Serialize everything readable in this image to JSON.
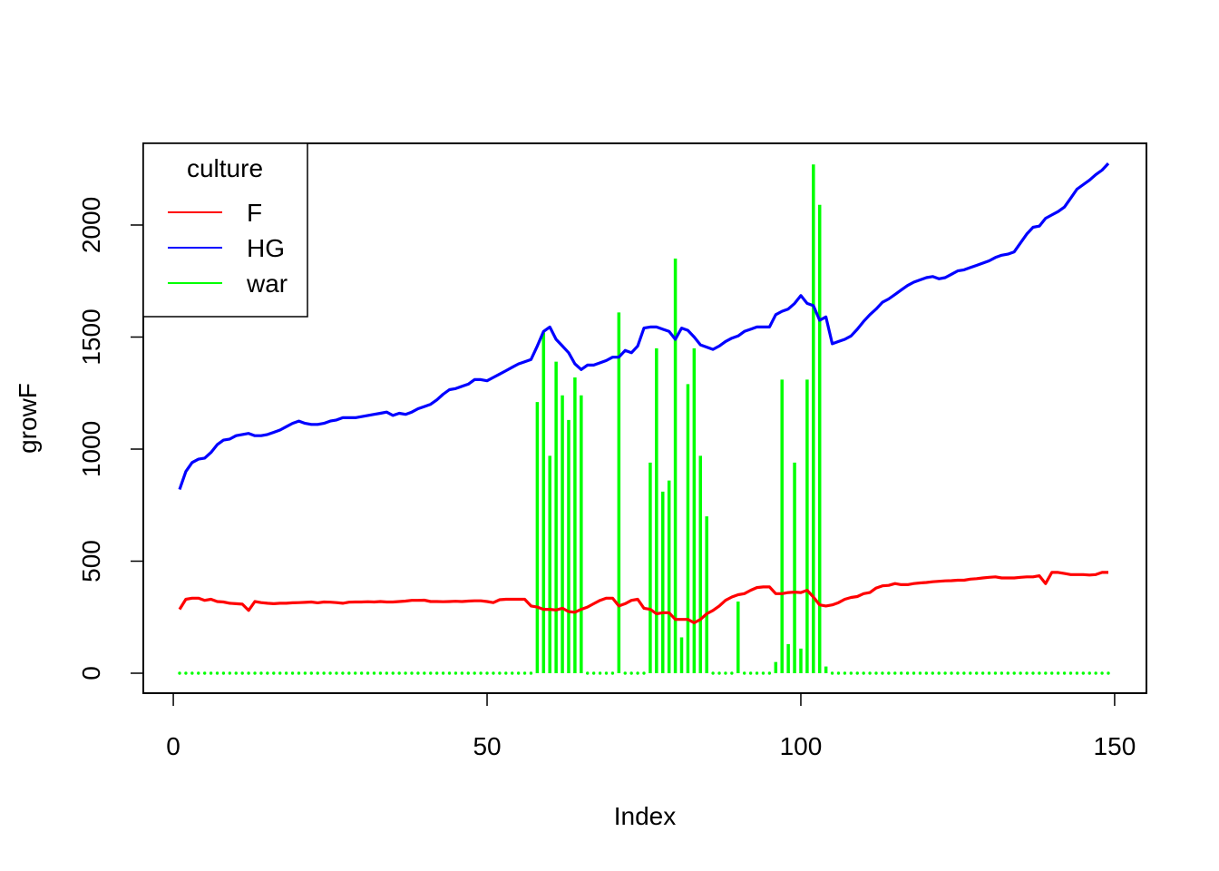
{
  "chart_data": {
    "type": "line",
    "xlabel": "Index",
    "ylabel": "growF",
    "xlim": [
      1,
      149
    ],
    "ylim": [
      0,
      2280
    ],
    "x_ticks": [
      0,
      50,
      100,
      150
    ],
    "y_ticks": [
      0,
      500,
      1000,
      1500,
      2000
    ],
    "grid": false,
    "legend": {
      "title": "culture",
      "placement": "top-left",
      "entries": [
        {
          "label": "F",
          "color": "#ff0000"
        },
        {
          "label": "HG",
          "color": "#0000ff"
        },
        {
          "label": "war",
          "color": "#00ff00"
        }
      ]
    },
    "series": [
      {
        "name": "F",
        "color": "#ff0000",
        "style": "line",
        "x": [
          1,
          2,
          3,
          4,
          5,
          6,
          7,
          8,
          9,
          10,
          11,
          12,
          13,
          14,
          15,
          16,
          17,
          18,
          19,
          20,
          21,
          22,
          23,
          24,
          25,
          26,
          27,
          28,
          29,
          30,
          31,
          32,
          33,
          34,
          35,
          36,
          37,
          38,
          39,
          40,
          41,
          42,
          43,
          44,
          45,
          46,
          47,
          48,
          49,
          50,
          51,
          52,
          53,
          54,
          55,
          56,
          57,
          58,
          59,
          60,
          61,
          62,
          63,
          64,
          65,
          66,
          67,
          68,
          69,
          70,
          71,
          72,
          73,
          74,
          75,
          76,
          77,
          78,
          79,
          80,
          81,
          82,
          83,
          84,
          85,
          86,
          87,
          88,
          89,
          90,
          91,
          92,
          93,
          94,
          95,
          96,
          97,
          98,
          99,
          100,
          101,
          102,
          103,
          104,
          105,
          106,
          107,
          108,
          109,
          110,
          111,
          112,
          113,
          114,
          115,
          116,
          117,
          118,
          119,
          120,
          121,
          122,
          123,
          124,
          125,
          126,
          127,
          128,
          129,
          130,
          131,
          132,
          133,
          134,
          135,
          136,
          137,
          138,
          139,
          140,
          141,
          142,
          143,
          144,
          145,
          146,
          147,
          148,
          149
        ],
        "values": [
          285,
          330,
          335,
          335,
          325,
          330,
          320,
          318,
          312,
          310,
          308,
          280,
          320,
          315,
          312,
          310,
          312,
          312,
          314,
          315,
          316,
          318,
          314,
          318,
          317,
          315,
          312,
          317,
          318,
          318,
          319,
          318,
          320,
          318,
          318,
          320,
          322,
          325,
          325,
          326,
          320,
          320,
          319,
          320,
          321,
          320,
          322,
          323,
          323,
          320,
          315,
          328,
          330,
          330,
          330,
          330,
          300,
          295,
          285,
          285,
          282,
          290,
          275,
          272,
          285,
          295,
          310,
          325,
          335,
          335,
          300,
          310,
          325,
          330,
          290,
          285,
          265,
          270,
          270,
          240,
          240,
          240,
          225,
          240,
          265,
          280,
          300,
          325,
          340,
          350,
          355,
          370,
          382,
          385,
          385,
          355,
          355,
          360,
          362,
          360,
          370,
          340,
          305,
          300,
          305,
          315,
          330,
          338,
          342,
          355,
          360,
          380,
          390,
          392,
          400,
          395,
          395,
          400,
          403,
          405,
          408,
          410,
          412,
          413,
          415,
          415,
          420,
          422,
          425,
          428,
          430,
          425,
          425,
          425,
          428,
          430,
          430,
          435,
          400,
          450,
          450,
          445,
          440,
          440,
          440,
          438,
          440,
          450,
          450
        ]
      },
      {
        "name": "HG",
        "color": "#0000ff",
        "style": "line",
        "x": [
          1,
          2,
          3,
          4,
          5,
          6,
          7,
          8,
          9,
          10,
          11,
          12,
          13,
          14,
          15,
          16,
          17,
          18,
          19,
          20,
          21,
          22,
          23,
          24,
          25,
          26,
          27,
          28,
          29,
          30,
          31,
          32,
          33,
          34,
          35,
          36,
          37,
          38,
          39,
          40,
          41,
          42,
          43,
          44,
          45,
          46,
          47,
          48,
          49,
          50,
          51,
          52,
          53,
          54,
          55,
          56,
          57,
          58,
          59,
          60,
          61,
          62,
          63,
          64,
          65,
          66,
          67,
          68,
          69,
          70,
          71,
          72,
          73,
          74,
          75,
          76,
          77,
          78,
          79,
          80,
          81,
          82,
          83,
          84,
          85,
          86,
          87,
          88,
          89,
          90,
          91,
          92,
          93,
          94,
          95,
          96,
          97,
          98,
          99,
          100,
          101,
          102,
          103,
          104,
          105,
          106,
          107,
          108,
          109,
          110,
          111,
          112,
          113,
          114,
          115,
          116,
          117,
          118,
          119,
          120,
          121,
          122,
          123,
          124,
          125,
          126,
          127,
          128,
          129,
          130,
          131,
          132,
          133,
          134,
          135,
          136,
          137,
          138,
          139,
          140,
          141,
          142,
          143,
          144,
          145,
          146,
          147,
          148,
          149
        ],
        "values": [
          820,
          900,
          940,
          955,
          960,
          985,
          1020,
          1040,
          1045,
          1060,
          1065,
          1070,
          1060,
          1060,
          1065,
          1075,
          1085,
          1100,
          1115,
          1125,
          1115,
          1110,
          1110,
          1115,
          1125,
          1130,
          1140,
          1140,
          1140,
          1145,
          1150,
          1155,
          1160,
          1165,
          1150,
          1160,
          1155,
          1165,
          1180,
          1190,
          1200,
          1220,
          1245,
          1265,
          1270,
          1280,
          1290,
          1310,
          1310,
          1305,
          1320,
          1335,
          1350,
          1365,
          1380,
          1390,
          1400,
          1460,
          1525,
          1545,
          1490,
          1460,
          1430,
          1380,
          1355,
          1375,
          1375,
          1385,
          1395,
          1410,
          1410,
          1440,
          1430,
          1460,
          1540,
          1545,
          1545,
          1535,
          1525,
          1490,
          1540,
          1530,
          1500,
          1465,
          1455,
          1445,
          1460,
          1480,
          1495,
          1505,
          1525,
          1535,
          1545,
          1545,
          1545,
          1600,
          1615,
          1625,
          1650,
          1685,
          1650,
          1640,
          1575,
          1590,
          1470,
          1480,
          1490,
          1505,
          1535,
          1570,
          1600,
          1625,
          1655,
          1670,
          1690,
          1710,
          1730,
          1745,
          1755,
          1765,
          1770,
          1760,
          1765,
          1780,
          1795,
          1800,
          1810,
          1820,
          1830,
          1840,
          1855,
          1865,
          1870,
          1880,
          1920,
          1960,
          1990,
          1995,
          2030,
          2045,
          2060,
          2080,
          2120,
          2160,
          2180,
          2200,
          2225,
          2245,
          2275
        ]
      },
      {
        "name": "war",
        "color": "#00ff00",
        "style": "bars",
        "x": [
          1,
          2,
          3,
          4,
          5,
          6,
          7,
          8,
          9,
          10,
          11,
          12,
          13,
          14,
          15,
          16,
          17,
          18,
          19,
          20,
          21,
          22,
          23,
          24,
          25,
          26,
          27,
          28,
          29,
          30,
          31,
          32,
          33,
          34,
          35,
          36,
          37,
          38,
          39,
          40,
          41,
          42,
          43,
          44,
          45,
          46,
          47,
          48,
          49,
          50,
          51,
          52,
          53,
          54,
          55,
          56,
          57,
          58,
          59,
          60,
          61,
          62,
          63,
          64,
          65,
          66,
          67,
          68,
          69,
          70,
          71,
          72,
          73,
          74,
          75,
          76,
          77,
          78,
          79,
          80,
          81,
          82,
          83,
          84,
          85,
          86,
          87,
          88,
          89,
          90,
          91,
          92,
          93,
          94,
          95,
          96,
          97,
          98,
          99,
          100,
          101,
          102,
          103,
          104,
          105,
          106,
          107,
          108,
          109,
          110,
          111,
          112,
          113,
          114,
          115,
          116,
          117,
          118,
          119,
          120,
          121,
          122,
          123,
          124,
          125,
          126,
          127,
          128,
          129,
          130,
          131,
          132,
          133,
          134,
          135,
          136,
          137,
          138,
          139,
          140,
          141,
          142,
          143,
          144,
          145,
          146,
          147,
          148,
          149
        ],
        "values": [
          0,
          0,
          0,
          0,
          0,
          0,
          0,
          0,
          0,
          0,
          0,
          0,
          0,
          0,
          0,
          0,
          0,
          0,
          0,
          0,
          0,
          0,
          0,
          0,
          0,
          0,
          0,
          0,
          0,
          0,
          0,
          0,
          0,
          0,
          0,
          0,
          0,
          0,
          0,
          0,
          0,
          0,
          0,
          0,
          0,
          0,
          0,
          0,
          0,
          0,
          0,
          0,
          0,
          0,
          0,
          0,
          0,
          1210,
          1520,
          970,
          1390,
          1240,
          1130,
          1320,
          1240,
          0,
          0,
          0,
          0,
          0,
          1610,
          0,
          0,
          0,
          0,
          940,
          1450,
          810,
          860,
          1850,
          160,
          1290,
          1450,
          970,
          700,
          0,
          0,
          0,
          0,
          320,
          0,
          0,
          0,
          0,
          0,
          50,
          1310,
          130,
          940,
          110,
          1310,
          2270,
          2090,
          30,
          0,
          0,
          0,
          0,
          0,
          0,
          0,
          0,
          0,
          0,
          0,
          0,
          0,
          0,
          0,
          0,
          0,
          0,
          0,
          0,
          0,
          0,
          0,
          0,
          0,
          0,
          0,
          0,
          0,
          0,
          0,
          0,
          0,
          0,
          0,
          0,
          0,
          0,
          0,
          0,
          0,
          0,
          0,
          0,
          0
        ]
      }
    ]
  }
}
